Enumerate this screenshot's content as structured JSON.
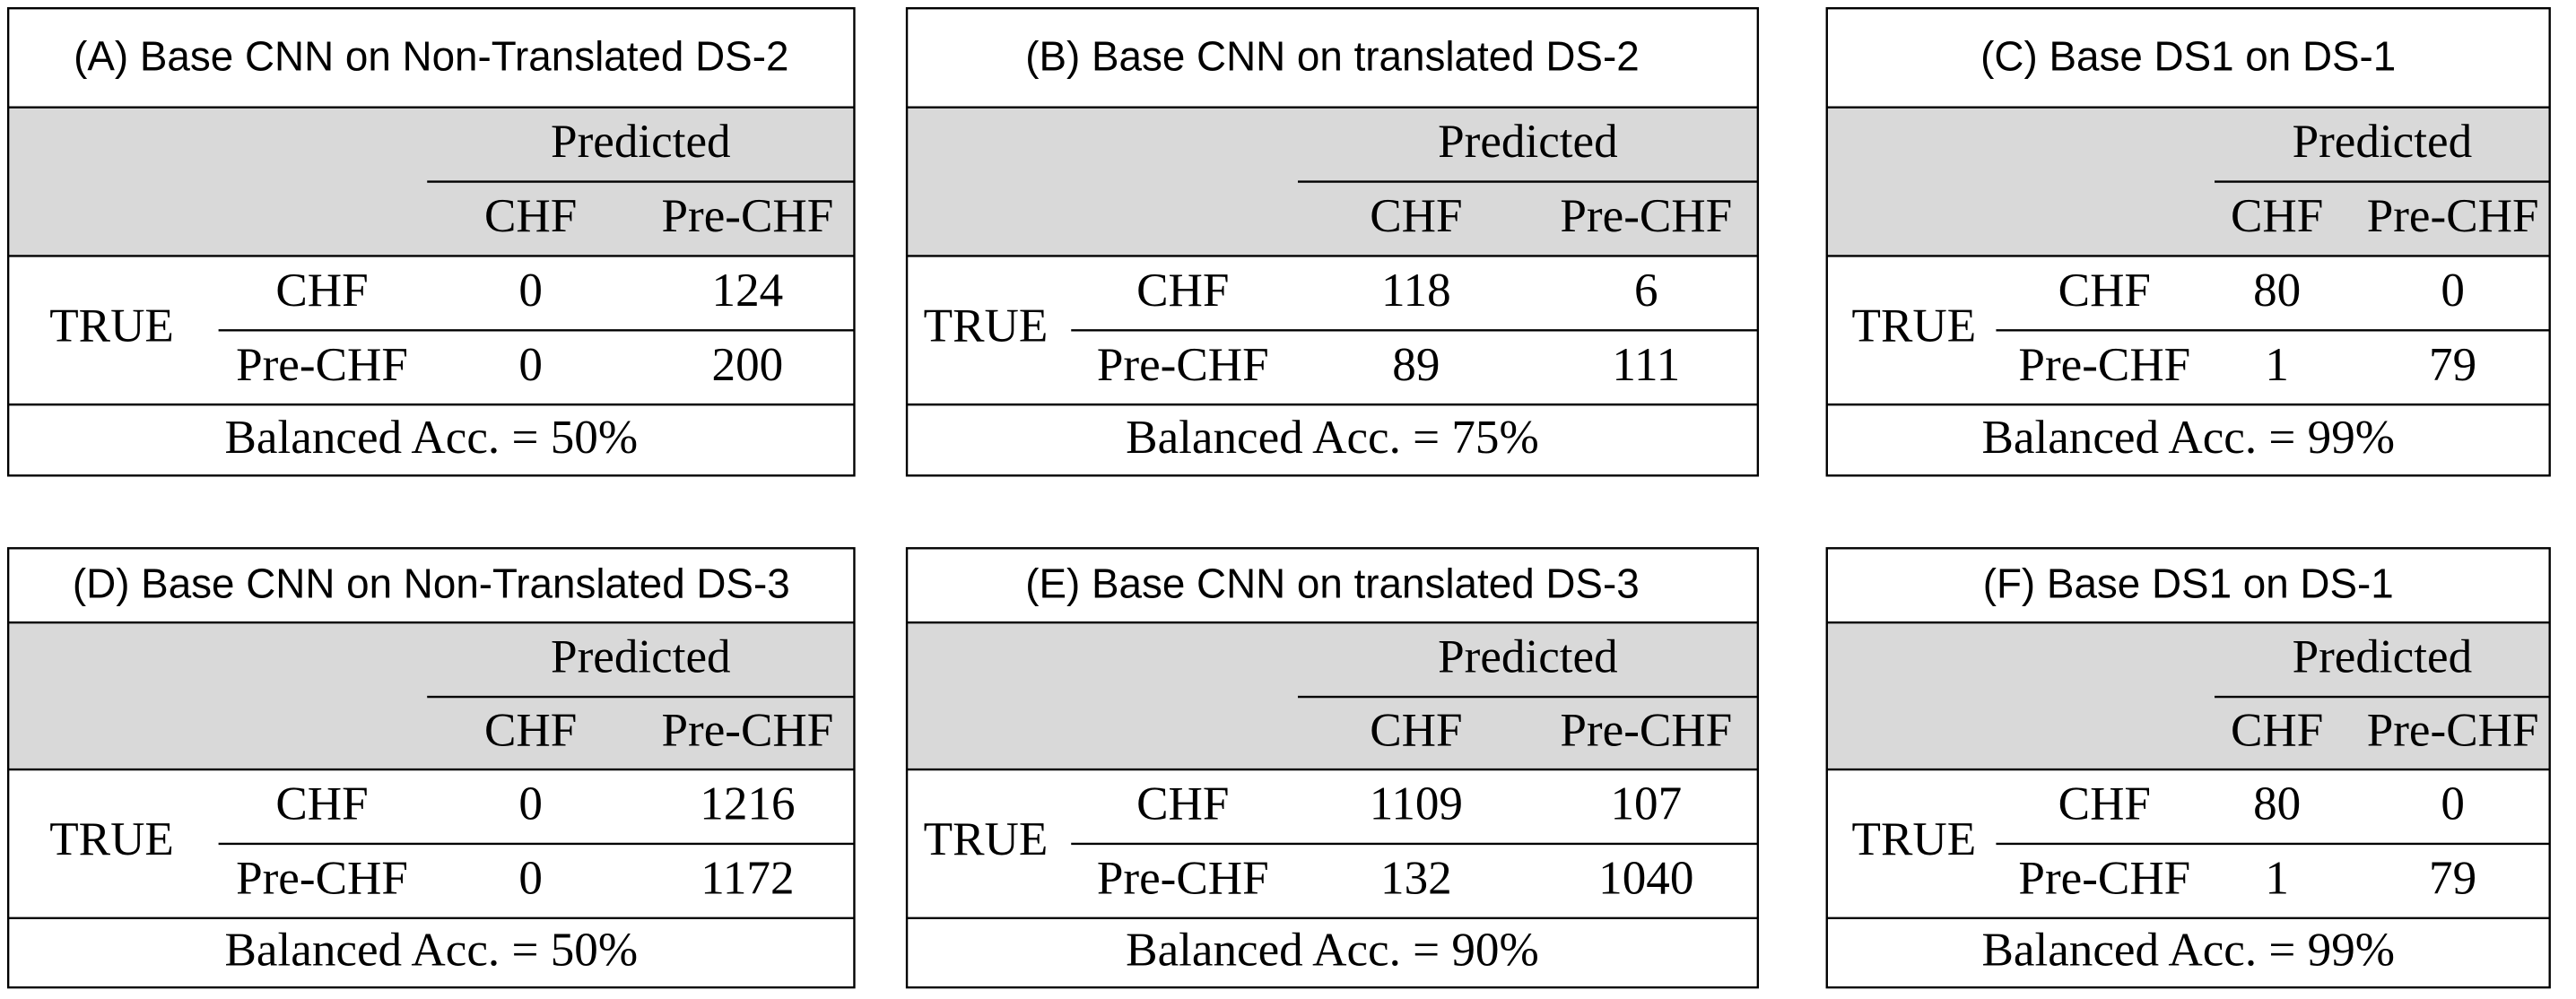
{
  "panels": [
    {
      "title": "(A) Base CNN on Non-Translated DS-2",
      "predicted": "Predicted",
      "columns": [
        "CHF",
        "Pre-CHF"
      ],
      "true_label": "TRUE",
      "rows": [
        {
          "label": "CHF",
          "values": [
            0,
            124
          ]
        },
        {
          "label": "Pre-CHF",
          "values": [
            0,
            200
          ]
        }
      ],
      "footer": "Balanced Acc. = 50%"
    },
    {
      "title": "(B) Base CNN on translated DS-2",
      "predicted": "Predicted",
      "columns": [
        "CHF",
        "Pre-CHF"
      ],
      "true_label": "TRUE",
      "rows": [
        {
          "label": "CHF",
          "values": [
            118,
            6
          ]
        },
        {
          "label": "Pre-CHF",
          "values": [
            89,
            111
          ]
        }
      ],
      "footer": "Balanced Acc. = 75%"
    },
    {
      "title": "(C) Base DS1 on DS-1",
      "predicted": "Predicted",
      "columns": [
        "CHF",
        "Pre-CHF"
      ],
      "true_label": "TRUE",
      "rows": [
        {
          "label": "CHF",
          "values": [
            80,
            0
          ]
        },
        {
          "label": "Pre-CHF",
          "values": [
            1,
            79
          ]
        }
      ],
      "footer": "Balanced Acc. = 99%"
    },
    {
      "title": "(D) Base CNN on Non-Translated DS-3",
      "predicted": "Predicted",
      "columns": [
        "CHF",
        "Pre-CHF"
      ],
      "true_label": "TRUE",
      "rows": [
        {
          "label": "CHF",
          "values": [
            0,
            1216
          ]
        },
        {
          "label": "Pre-CHF",
          "values": [
            0,
            1172
          ]
        }
      ],
      "footer": "Balanced Acc. = 50%"
    },
    {
      "title": "(E) Base CNN on translated DS-3",
      "predicted": "Predicted",
      "columns": [
        "CHF",
        "Pre-CHF"
      ],
      "true_label": "TRUE",
      "rows": [
        {
          "label": "CHF",
          "values": [
            1109,
            107
          ]
        },
        {
          "label": "Pre-CHF",
          "values": [
            132,
            1040
          ]
        }
      ],
      "footer": "Balanced Acc. = 90%"
    },
    {
      "title": "(F) Base DS1 on DS-1",
      "predicted": "Predicted",
      "columns": [
        "CHF",
        "Pre-CHF"
      ],
      "true_label": "TRUE",
      "rows": [
        {
          "label": "CHF",
          "values": [
            80,
            0
          ]
        },
        {
          "label": "Pre-CHF",
          "values": [
            1,
            79
          ]
        }
      ],
      "footer": "Balanced Acc. = 99%"
    }
  ]
}
